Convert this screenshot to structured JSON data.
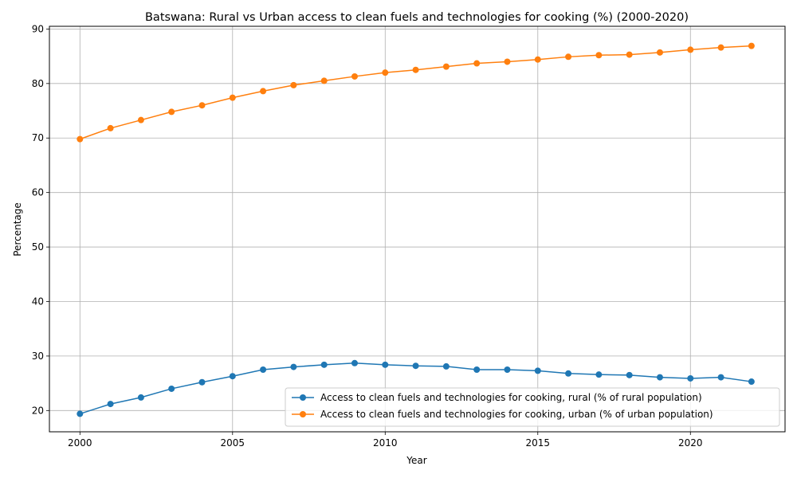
{
  "chart_data": {
    "type": "line",
    "title": "Batswana: Rural vs Urban access to clean fuels and technologies for cooking (%) (2000-2020)",
    "xlabel": "Year",
    "ylabel": "Percentage",
    "x": [
      2000,
      2001,
      2002,
      2003,
      2004,
      2005,
      2006,
      2007,
      2008,
      2009,
      2010,
      2011,
      2012,
      2013,
      2014,
      2015,
      2016,
      2017,
      2018,
      2019,
      2020,
      2021,
      2022
    ],
    "xlim": [
      1999,
      2023.1
    ],
    "ylim": [
      16.1,
      90.5
    ],
    "xticks": [
      2000,
      2005,
      2010,
      2015,
      2020
    ],
    "yticks": [
      20,
      30,
      40,
      50,
      60,
      70,
      80,
      90
    ],
    "grid": true,
    "legend_position": "lower-right",
    "series": [
      {
        "name": "Access to clean fuels and technologies for cooking, rural (% of rural population)",
        "color": "#1f77b4",
        "marker": "circle",
        "values": [
          19.4,
          21.2,
          22.4,
          24.0,
          25.2,
          26.3,
          27.5,
          28.0,
          28.4,
          28.7,
          28.4,
          28.2,
          28.1,
          27.5,
          27.5,
          27.3,
          26.8,
          26.6,
          26.5,
          26.1,
          25.9,
          26.1,
          25.3
        ]
      },
      {
        "name": "Access to clean fuels and technologies for cooking, urban (% of urban population)",
        "color": "#ff7f0e",
        "marker": "circle",
        "values": [
          69.8,
          71.8,
          73.3,
          74.8,
          76.0,
          77.4,
          78.6,
          79.7,
          80.5,
          81.3,
          82.0,
          82.5,
          83.1,
          83.7,
          84.0,
          84.4,
          84.9,
          85.2,
          85.3,
          85.7,
          86.2,
          86.6,
          86.9
        ]
      }
    ]
  }
}
